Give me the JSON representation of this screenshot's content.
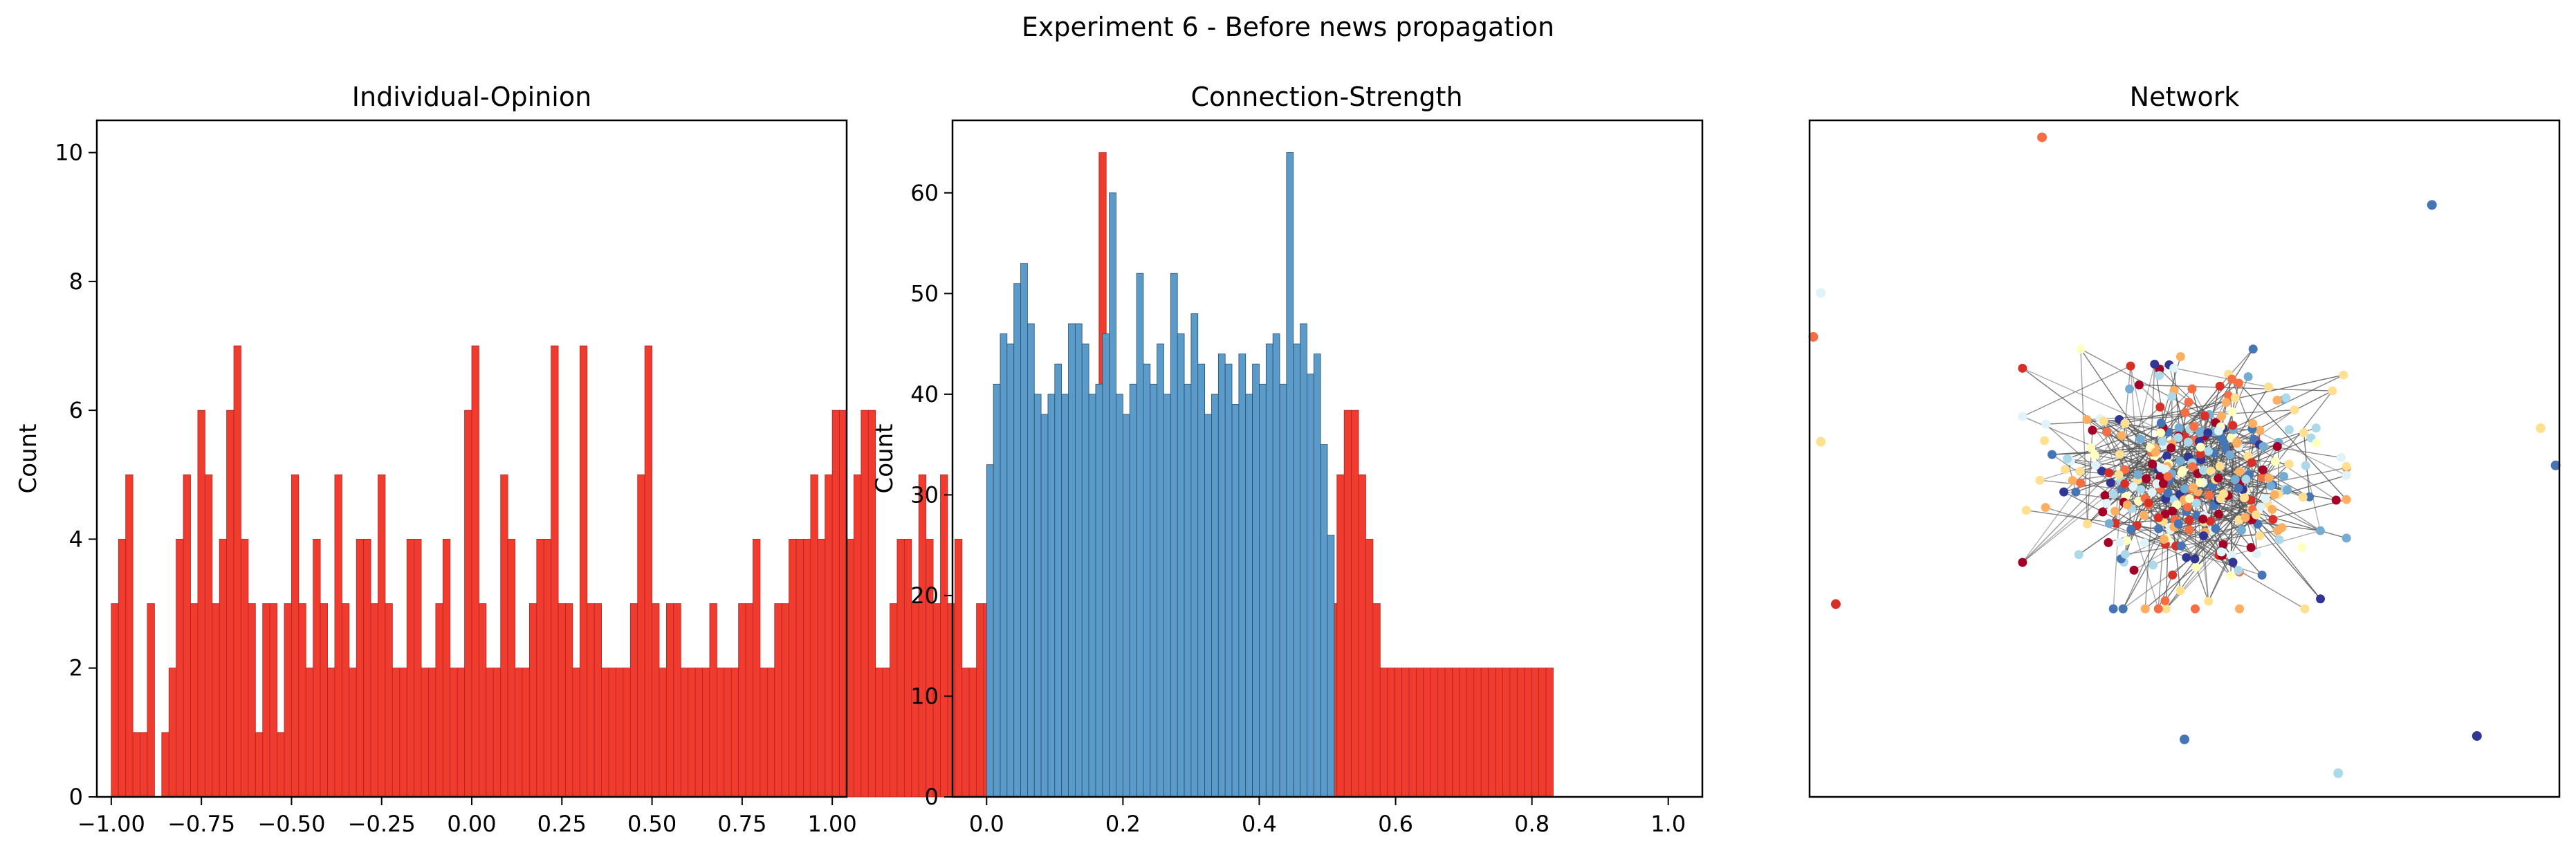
{
  "figure": {
    "title": "Experiment 6 - Before news propagation"
  },
  "colors": {
    "opinion_bar": "#f03b2f",
    "opinion_edge": "#b22222",
    "strength_bar": "#5b9bc9",
    "strength_edge": "#2b4c6b",
    "network_edge": "#555555"
  },
  "chart_data": [
    {
      "type": "bar",
      "title": "Individual-Opinion",
      "xlabel": "",
      "ylabel": "Count",
      "xlim": [
        -1.04,
        1.04
      ],
      "ylim": [
        0,
        10.5
      ],
      "xticks": [
        -1.0,
        -0.75,
        -0.5,
        -0.25,
        0.0,
        0.25,
        0.5,
        0.75,
        1.0
      ],
      "xtick_labels": [
        "−1.00",
        "−0.75",
        "−0.50",
        "−0.25",
        "0.00",
        "0.25",
        "0.50",
        "0.75",
        "1.00"
      ],
      "yticks": [
        0,
        2,
        4,
        6,
        8,
        10
      ],
      "ytick_labels": [
        "0",
        "2",
        "4",
        "6",
        "8",
        "10"
      ],
      "bin_start": -1.0,
      "bin_width": 0.02,
      "values": [
        3,
        4,
        5,
        1,
        1,
        3,
        0,
        1,
        2,
        4,
        5,
        3,
        6,
        5,
        3,
        4,
        6,
        7,
        4,
        3,
        1,
        3,
        3,
        1,
        3,
        5,
        3,
        2,
        4,
        3,
        2,
        5,
        3,
        2,
        4,
        4,
        3,
        5,
        3,
        2,
        2,
        4,
        4,
        2,
        2,
        3,
        4,
        2,
        2,
        6,
        7,
        3,
        2,
        2,
        5,
        4,
        2,
        2,
        3,
        4,
        4,
        7,
        3,
        3,
        2,
        7,
        3,
        3,
        2,
        2,
        2,
        2,
        3,
        5,
        7,
        3,
        2,
        3,
        3,
        2,
        2,
        2,
        2,
        3,
        2,
        2,
        2,
        3,
        3,
        4,
        2,
        2,
        3,
        3,
        4,
        4,
        4,
        5,
        4,
        5,
        6,
        6,
        4,
        5,
        6,
        6,
        2,
        2,
        3,
        4,
        4,
        3,
        5,
        4,
        3,
        5,
        3,
        4,
        2,
        2,
        3,
        3,
        4,
        6,
        6,
        5,
        6,
        4,
        5,
        4,
        5,
        3,
        3,
        2,
        1,
        2,
        5,
        10,
        4,
        3,
        2,
        3,
        3,
        4,
        3,
        4,
        2,
        4,
        2,
        3,
        3,
        3,
        3,
        3,
        4,
        3,
        3,
        5,
        4,
        4,
        5,
        4,
        3,
        5,
        6,
        6,
        5,
        5,
        4,
        3,
        5,
        6,
        6,
        5,
        4,
        3,
        2,
        2,
        2,
        2,
        2,
        2,
        2,
        2,
        2,
        2,
        2,
        2,
        2,
        2,
        2,
        2,
        2,
        2,
        2,
        2,
        2,
        2,
        2,
        2
      ]
    },
    {
      "type": "bar",
      "title": "Connection-Strength",
      "xlabel": "",
      "ylabel": "Count",
      "xlim": [
        -0.05,
        1.05
      ],
      "ylim": [
        0,
        67.2
      ],
      "xticks": [
        0.0,
        0.2,
        0.4,
        0.6,
        0.8,
        1.0
      ],
      "xtick_labels": [
        "0.0",
        "0.2",
        "0.4",
        "0.6",
        "0.8",
        "1.0"
      ],
      "yticks": [
        0,
        10,
        20,
        30,
        40,
        50,
        60
      ],
      "ytick_labels": [
        "0",
        "10",
        "20",
        "30",
        "40",
        "50",
        "60"
      ],
      "bin_start": 0.0,
      "bin_width": 0.01,
      "values": [
        33,
        41,
        46,
        45,
        51,
        53,
        47,
        40,
        38,
        40,
        43,
        40,
        47,
        47,
        45,
        40,
        41,
        46,
        60,
        40,
        38,
        41,
        52,
        43,
        41,
        45,
        40,
        52,
        46,
        41,
        48,
        43,
        38,
        40,
        44,
        43,
        39,
        44,
        40,
        43,
        41,
        45,
        46,
        41,
        64,
        45,
        47,
        42,
        44,
        35,
        26
      ]
    },
    {
      "type": "scatter",
      "title": "Network",
      "xlabel": "",
      "ylabel": "",
      "xlim": [
        -1.0,
        1.0
      ],
      "ylim": [
        -1.0,
        1.0
      ],
      "node_colors": [
        "#a50026",
        "#d73027",
        "#f46d43",
        "#fdae61",
        "#fee090",
        "#ffffbf",
        "#e0f3f8",
        "#abd9e9",
        "#74add1",
        "#4575b4",
        "#313695"
      ],
      "outlier_nodes": [
        {
          "x": -0.38,
          "y": 0.95,
          "c": "#f46d43"
        },
        {
          "x": 0.66,
          "y": 0.75,
          "c": "#4575b4"
        },
        {
          "x": -0.97,
          "y": 0.49,
          "c": "#e0f3f8"
        },
        {
          "x": -0.99,
          "y": 0.36,
          "c": "#f46d43"
        },
        {
          "x": -0.97,
          "y": 0.05,
          "c": "#fee090"
        },
        {
          "x": 0.95,
          "y": 0.09,
          "c": "#fee090"
        },
        {
          "x": 0.99,
          "y": -0.02,
          "c": "#4575b4"
        },
        {
          "x": -0.93,
          "y": -0.43,
          "c": "#d73027"
        },
        {
          "x": 0.78,
          "y": -0.82,
          "c": "#313695"
        },
        {
          "x": 0.41,
          "y": -0.93,
          "c": "#abd9e9"
        },
        {
          "x": 0.0,
          "y": -0.83,
          "c": "#4575b4"
        }
      ],
      "cluster": {
        "cx": 0.0,
        "cy": -0.06,
        "sx": 0.18,
        "sy": 0.16,
        "count": 340,
        "edges": 360
      }
    }
  ]
}
